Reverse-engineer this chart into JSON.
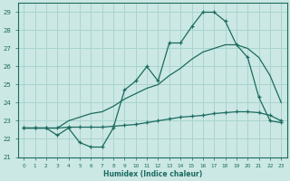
{
  "xlabel": "Humidex (Indice chaleur)",
  "bg_color": "#cce8e4",
  "grid_color": "#a8d4cf",
  "line_color": "#1a6b60",
  "xlim": [
    -0.5,
    23.5
  ],
  "ylim": [
    21,
    29.5
  ],
  "xticks": [
    0,
    1,
    2,
    3,
    4,
    5,
    6,
    7,
    8,
    9,
    10,
    11,
    12,
    13,
    14,
    15,
    16,
    17,
    18,
    19,
    20,
    21,
    22,
    23
  ],
  "yticks": [
    21,
    22,
    23,
    24,
    25,
    26,
    27,
    28,
    29
  ],
  "line1_x": [
    0,
    1,
    2,
    3,
    4,
    5,
    6,
    7,
    8,
    9,
    10,
    11,
    12,
    13,
    14,
    15,
    16,
    17,
    18,
    19,
    20,
    21,
    22,
    23
  ],
  "line1_y": [
    22.6,
    22.6,
    22.6,
    22.2,
    22.6,
    21.8,
    21.55,
    21.55,
    22.6,
    24.7,
    25.2,
    26.0,
    25.2,
    27.3,
    27.3,
    28.2,
    29.0,
    29.0,
    28.5,
    27.2,
    26.5,
    24.3,
    23.0,
    22.9
  ],
  "line2_x": [
    0,
    1,
    2,
    3,
    4,
    5,
    6,
    7,
    8,
    9,
    10,
    11,
    12,
    13,
    14,
    15,
    16,
    17,
    18,
    19,
    20,
    21,
    22,
    23
  ],
  "line2_y": [
    22.6,
    22.6,
    22.6,
    22.6,
    22.65,
    22.65,
    22.65,
    22.65,
    22.7,
    22.75,
    22.8,
    22.9,
    23.0,
    23.1,
    23.2,
    23.25,
    23.3,
    23.4,
    23.45,
    23.5,
    23.5,
    23.45,
    23.3,
    23.0
  ],
  "line3_x": [
    0,
    1,
    2,
    3,
    4,
    5,
    6,
    7,
    8,
    9,
    10,
    11,
    12,
    13,
    14,
    15,
    16,
    17,
    18,
    19,
    20,
    21,
    22,
    23
  ],
  "line3_y": [
    22.6,
    22.6,
    22.6,
    22.6,
    23.0,
    23.2,
    23.4,
    23.5,
    23.8,
    24.2,
    24.5,
    24.8,
    25.0,
    25.5,
    25.9,
    26.4,
    26.8,
    27.0,
    27.2,
    27.2,
    27.0,
    26.5,
    25.5,
    24.0
  ]
}
